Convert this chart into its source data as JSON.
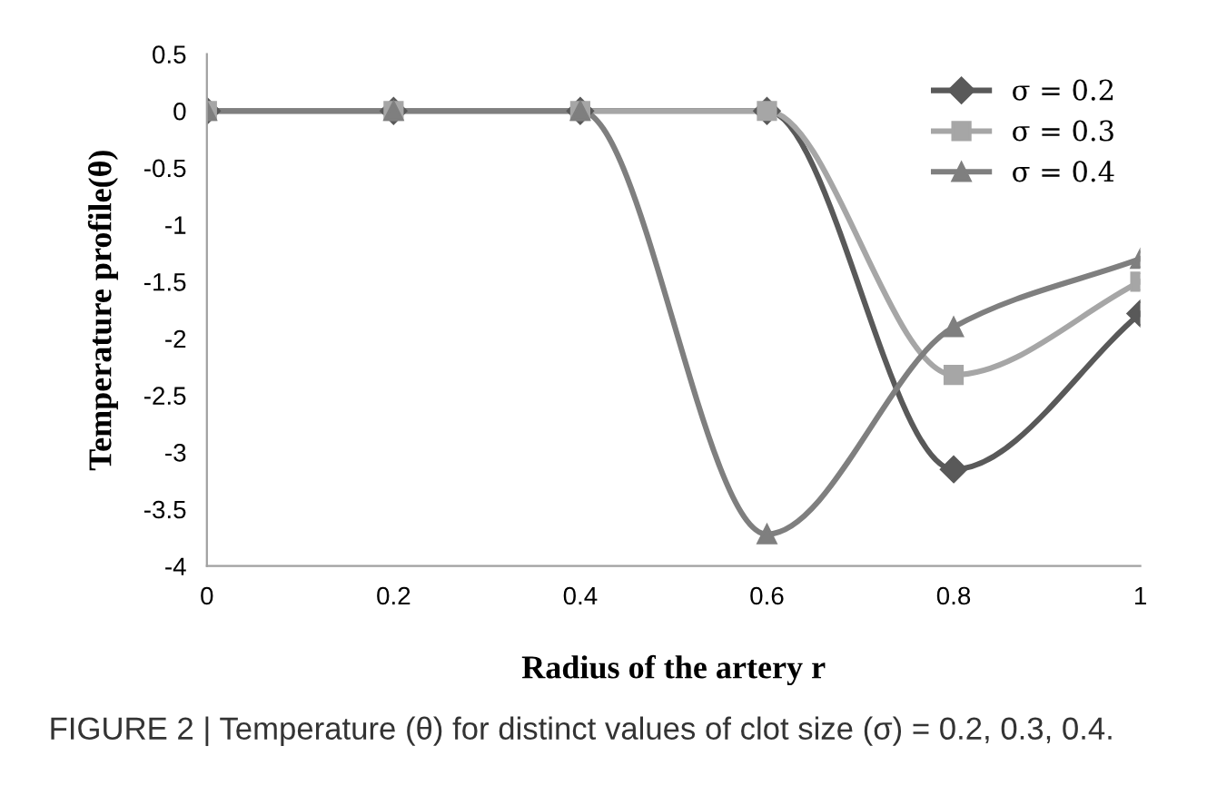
{
  "chart_data": {
    "type": "line",
    "xlabel": "Radius of the artery r",
    "ylabel": "Temperature profile(θ)",
    "x": [
      0,
      0.2,
      0.4,
      0.6,
      0.8,
      1
    ],
    "series": [
      {
        "name": "σ = 0.2",
        "color": "#595959",
        "marker": "diamond",
        "values": [
          0,
          0,
          0,
          0,
          -3.15,
          -1.78
        ]
      },
      {
        "name": "σ = 0.3",
        "color": "#a6a6a6",
        "marker": "square",
        "values": [
          0,
          0,
          0,
          0,
          -2.32,
          -1.5
        ]
      },
      {
        "name": "σ = 0.4",
        "color": "#7f7f7f",
        "marker": "triangle",
        "values": [
          0,
          0,
          0,
          -3.72,
          -1.9,
          -1.3
        ]
      }
    ],
    "xlim": [
      0,
      1
    ],
    "xticks": [
      0,
      0.2,
      0.4,
      0.6,
      0.8,
      1
    ],
    "ylim": [
      -4,
      0.5
    ],
    "yticks": [
      -4,
      -3.5,
      -3,
      -2.5,
      -2,
      -1.5,
      -1,
      -0.5,
      0,
      0.5
    ],
    "grid": false,
    "legend": "top right",
    "annotations": [
      "FIGURE 2 | Temperature (θ) for distinct values of clot size (σ) = 0.2, 0.3, 0.4."
    ]
  }
}
